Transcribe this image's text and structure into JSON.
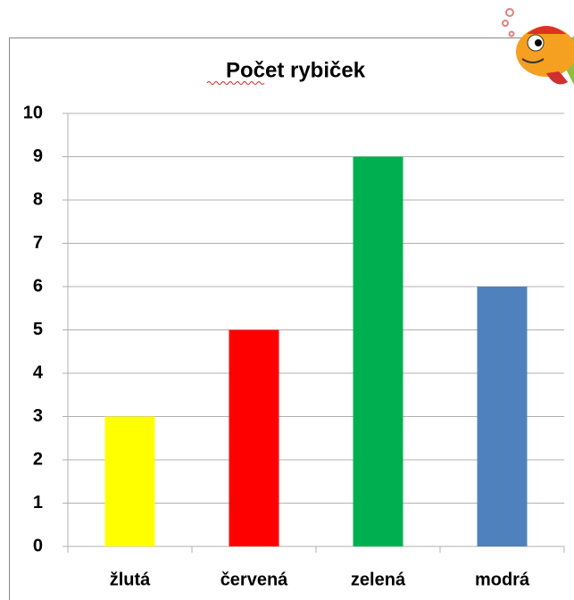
{
  "chart_data": {
    "type": "bar",
    "title": "Počet rybiček",
    "categories": [
      "žlutá",
      "červená",
      "zelená",
      "modrá"
    ],
    "values": [
      3,
      5,
      9,
      6
    ],
    "colors": [
      "#ffff00",
      "#ff0000",
      "#00b050",
      "#4f81bd"
    ],
    "ylim": [
      0,
      10
    ],
    "yticks": [
      0,
      1,
      2,
      3,
      4,
      5,
      6,
      7,
      8,
      9,
      10
    ],
    "grid": true
  }
}
